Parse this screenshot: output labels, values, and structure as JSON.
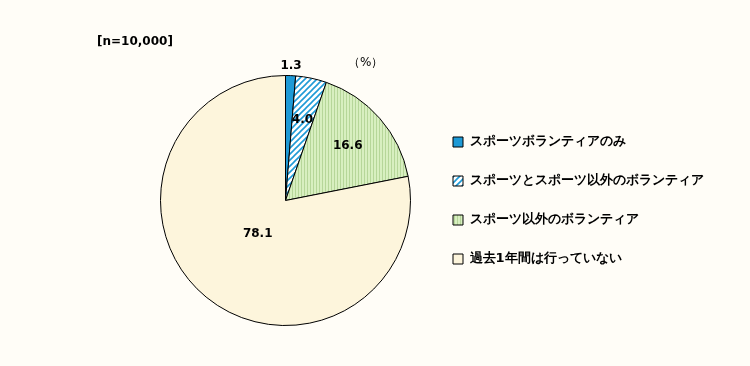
{
  "chart_data": {
    "type": "pie",
    "subtitle": "[n=10,000]",
    "annotations": [
      "（%）"
    ],
    "categories": [
      "スポーツボランティアのみ",
      "スポーツとスポーツ以外のボランティア",
      "スポーツ以外のボランティア",
      "過去1年間は行っていない"
    ],
    "values": [
      1.3,
      4.0,
      16.6,
      78.1
    ],
    "value_labels": [
      "1.3",
      "4.0",
      "16.6",
      "78.1"
    ],
    "colors": [
      "#1e9ad6",
      "#1e9ad6",
      "#d8efc0",
      "#fdf5dc"
    ],
    "legend": "right",
    "data_labels": true
  }
}
